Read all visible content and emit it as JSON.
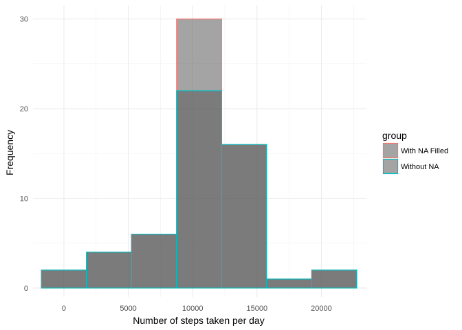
{
  "chart_data": {
    "type": "bar",
    "title": "",
    "xlabel": "Number of steps taken per day",
    "ylabel": "Frequency",
    "xlim": [
      -2400,
      23500
    ],
    "ylim": [
      -1,
      31.5
    ],
    "x_ticks": [
      0,
      5000,
      10000,
      15000,
      20000
    ],
    "x_tick_labels": [
      "0",
      "5000",
      "10000",
      "15000",
      "20000"
    ],
    "y_ticks": [
      0,
      10,
      20,
      30
    ],
    "y_tick_labels": [
      "0",
      "10",
      "20",
      "30"
    ],
    "grid": true,
    "legend": {
      "title": "group",
      "position": "right",
      "entries": [
        "With NA Filled",
        "Without NA"
      ]
    },
    "bins": [
      [
        -1750,
        1750
      ],
      [
        1750,
        5250
      ],
      [
        5250,
        8750
      ],
      [
        8750,
        12250
      ],
      [
        12250,
        15750
      ],
      [
        15750,
        19250
      ],
      [
        19250,
        22750
      ]
    ],
    "series": [
      {
        "name": "With NA Filled",
        "outline_color": "#F8766D",
        "fill_color": "#595959",
        "values": [
          2,
          4,
          6,
          30,
          16,
          1,
          2
        ]
      },
      {
        "name": "Without NA",
        "outline_color": "#00BFC4",
        "fill_color": "#595959",
        "values": [
          2,
          4,
          6,
          22,
          16,
          1,
          2
        ]
      }
    ]
  }
}
